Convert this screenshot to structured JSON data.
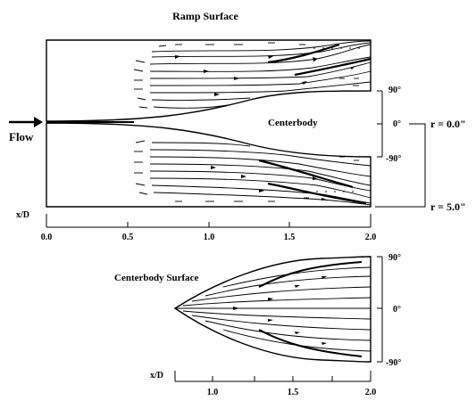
{
  "titles": {
    "ramp_surface": "Ramp Surface",
    "centerbody_surface": "Centerbody Surface"
  },
  "labels": {
    "flow": "Flow",
    "centerbody": "Centerbody",
    "r_inner": "r = 0.0\"",
    "r_outer": "r = 5.0\""
  },
  "top_panel": {
    "angle_labels": [
      "90°",
      "0°",
      "-90°"
    ],
    "axis": {
      "label": "x/D",
      "ticks": [
        "0.0",
        "0.5",
        "1.0",
        "1.5",
        "2.0"
      ]
    }
  },
  "bottom_panel": {
    "angle_labels": [
      "90°",
      "0°",
      "-90°"
    ],
    "axis": {
      "label": "x/D",
      "ticks": [
        "1.0",
        "1.5",
        "2.0"
      ]
    }
  },
  "icons": {
    "flow_arrow": "arrow-right-icon"
  }
}
